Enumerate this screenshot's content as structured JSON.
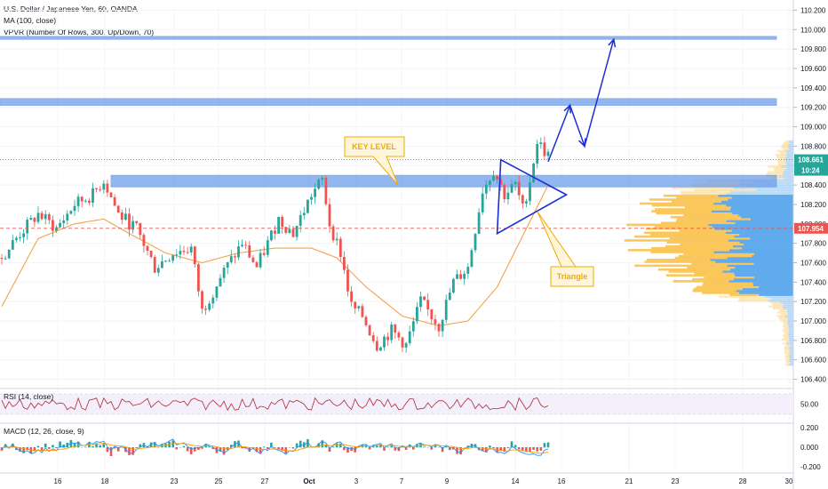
{
  "legend": {
    "symbol": "U.S. Dollar / Japanese Yen, 60, OANDA",
    "ma": "MA (100, close)",
    "vpvr": "VPVR (Number Of Rows, 300, Up/Down, 70)"
  },
  "colors": {
    "up": "#26a69a",
    "down": "#ef5350",
    "ma": "#f4a24a",
    "zone": "#6d9eeb",
    "arrow": "#1a2fd6",
    "triangle": "#1a2fd6",
    "annotation": "#f2a900",
    "vp_up": "#5aa8ec",
    "vp_down": "#f9c24c",
    "price_badge": "#26a69a",
    "ref_badge": "#ef5350"
  },
  "chart_data": {
    "type": "candlestick",
    "price_axis": {
      "ylim": [
        106.35,
        110.25
      ],
      "ticks": [
        "110.200",
        "110.000",
        "109.800",
        "109.600",
        "109.400",
        "109.200",
        "109.000",
        "108.800",
        "108.600",
        "108.400",
        "108.200",
        "108.000",
        "107.800",
        "107.600",
        "107.400",
        "107.200",
        "107.000",
        "106.800",
        "106.600",
        "106.400"
      ]
    },
    "time_axis": {
      "labels": [
        "16",
        "18",
        "23",
        "25",
        "27",
        "Oct",
        "3",
        "7",
        "9",
        "14",
        "16",
        "21",
        "23",
        "28",
        "30"
      ]
    },
    "ohlc_trend": [
      [
        0,
        107.65
      ],
      [
        5,
        107.9
      ],
      [
        10,
        108.1
      ],
      [
        15,
        107.95
      ],
      [
        20,
        108.2
      ],
      [
        25,
        108.3
      ],
      [
        28,
        108.45
      ],
      [
        32,
        108.1
      ],
      [
        37,
        107.95
      ],
      [
        42,
        107.55
      ],
      [
        47,
        107.7
      ],
      [
        52,
        107.75
      ],
      [
        55,
        107.1
      ],
      [
        60,
        107.45
      ],
      [
        66,
        107.8
      ],
      [
        70,
        107.55
      ],
      [
        76,
        108.05
      ],
      [
        80,
        107.9
      ],
      [
        85,
        108.3
      ],
      [
        88,
        108.45
      ],
      [
        90,
        108.0
      ],
      [
        93,
        107.7
      ],
      [
        96,
        107.15
      ],
      [
        99,
        107.05
      ],
      [
        103,
        106.75
      ],
      [
        107,
        106.9
      ],
      [
        111,
        106.75
      ],
      [
        115,
        107.2
      ],
      [
        120,
        106.95
      ],
      [
        124,
        107.4
      ],
      [
        128,
        107.55
      ],
      [
        132,
        108.35
      ],
      [
        135,
        108.55
      ],
      [
        138,
        108.3
      ],
      [
        141,
        108.4
      ],
      [
        143,
        108.15
      ],
      [
        145,
        108.45
      ],
      [
        147,
        108.85
      ],
      [
        150,
        108.7
      ]
    ],
    "ma_trend": [
      [
        0,
        107.15
      ],
      [
        10,
        107.85
      ],
      [
        20,
        108.0
      ],
      [
        28,
        108.05
      ],
      [
        35,
        107.9
      ],
      [
        45,
        107.7
      ],
      [
        55,
        107.6
      ],
      [
        65,
        107.7
      ],
      [
        75,
        107.75
      ],
      [
        85,
        107.75
      ],
      [
        92,
        107.65
      ],
      [
        100,
        107.35
      ],
      [
        110,
        107.05
      ],
      [
        120,
        106.95
      ],
      [
        128,
        107.0
      ],
      [
        136,
        107.35
      ],
      [
        144,
        107.95
      ],
      [
        150,
        108.4
      ]
    ],
    "current_price": {
      "value": 108.661,
      "label": "108.661",
      "countdown": "10:24"
    },
    "reference_price": {
      "value": 107.954,
      "label": "107.954"
    },
    "zones": [
      {
        "name": "zone-top",
        "low": 109.9,
        "high": 109.93
      },
      {
        "name": "zone-mid",
        "low": 109.22,
        "high": 109.29
      },
      {
        "name": "zone-key-level",
        "low": 108.38,
        "high": 108.5
      }
    ],
    "volume_profile_note": "right-aligned volume profile, peak near 107.95",
    "annotations": [
      {
        "name": "key-level",
        "text": "KEY LEVEL"
      },
      {
        "name": "triangle",
        "text": "Triangle"
      }
    ],
    "projection_path": [
      [
        150,
        108.64
      ],
      [
        156,
        109.22
      ],
      [
        160,
        108.8
      ],
      [
        168,
        109.9
      ]
    ],
    "rsi": {
      "label": "RSI (14, close)",
      "ticks": [
        "50.00"
      ],
      "levels": [
        70,
        30
      ]
    },
    "macd": {
      "label": "MACD (12, 26, close, 9)",
      "ticks": [
        "0.200",
        "0.000",
        "-0.200"
      ]
    }
  }
}
